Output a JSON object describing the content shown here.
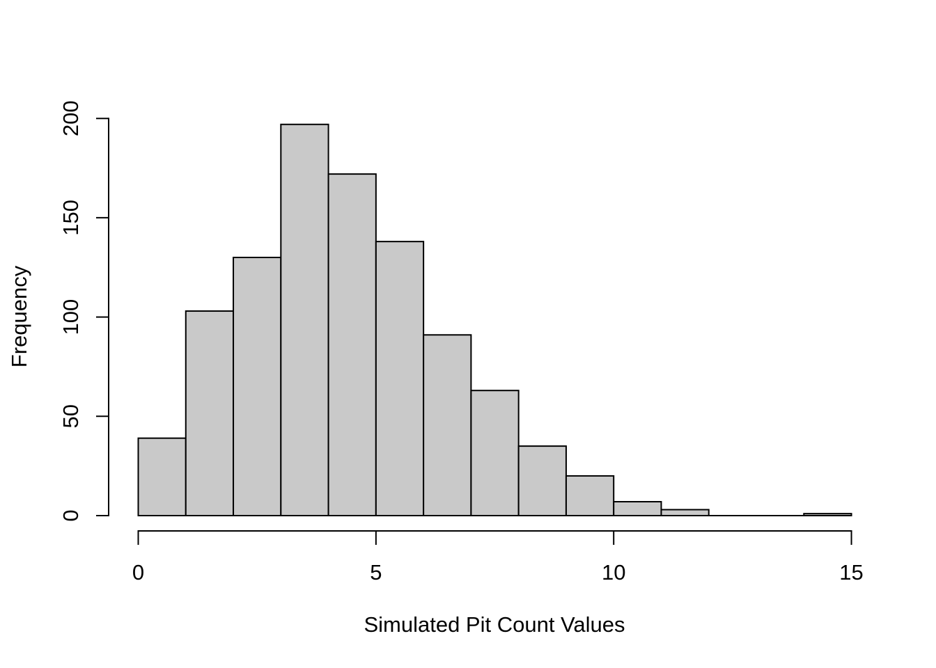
{
  "chart_data": {
    "type": "histogram",
    "title": "",
    "xlabel": "Simulated Pit Count Values",
    "ylabel": "Frequency",
    "bin_width": 1,
    "bin_edges": [
      0,
      1,
      2,
      3,
      4,
      5,
      6,
      7,
      8,
      9,
      10,
      11,
      12,
      13,
      14,
      15
    ],
    "counts": [
      39,
      103,
      130,
      197,
      172,
      138,
      91,
      63,
      35,
      20,
      7,
      3,
      0,
      0,
      1
    ],
    "x_ticks": [
      0,
      5,
      10,
      15
    ],
    "y_ticks": [
      0,
      50,
      100,
      150,
      200
    ],
    "xlim": [
      0,
      15
    ],
    "ylim": [
      0,
      200
    ],
    "grid": false,
    "legend": "none",
    "colors": {
      "bar_fill": "#C9C9C9",
      "bar_border": "#000000",
      "axis": "#000000",
      "text": "#000000",
      "background": "#FFFFFF"
    }
  }
}
